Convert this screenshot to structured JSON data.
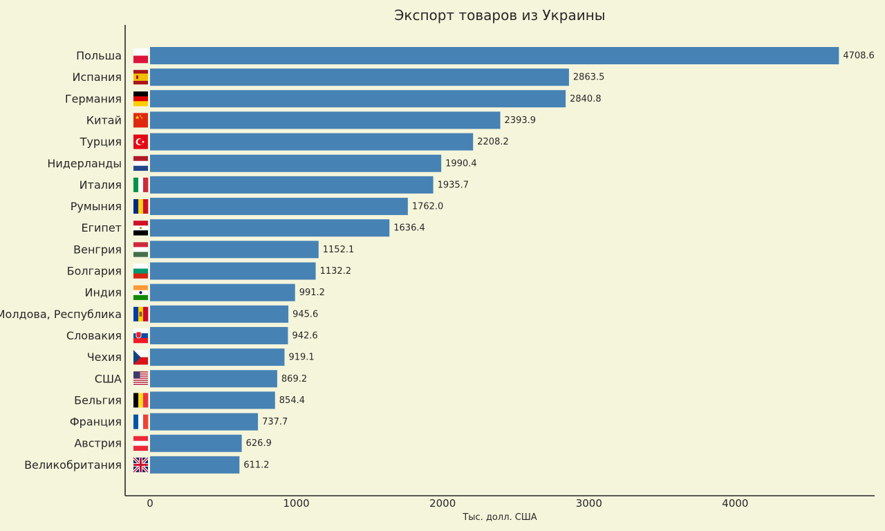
{
  "chart_data": {
    "type": "bar",
    "orientation": "horizontal",
    "title": "Экспорт товаров из Украины",
    "xlabel": "Тыс. долл. США",
    "ylabel": "",
    "categories": [
      "Польша",
      "Испания",
      "Германия",
      "Китай",
      "Турция",
      "Нидерланды",
      "Италия",
      "Румыния",
      "Египет",
      "Венгрия",
      "Болгария",
      "Индия",
      "Молдова, Республика",
      "Словакия",
      "Чехия",
      "США",
      "Бельгия",
      "Франция",
      "Австрия",
      "Великобритания"
    ],
    "values": [
      4708.6,
      2863.5,
      2840.8,
      2393.9,
      2208.2,
      1990.4,
      1935.7,
      1762.0,
      1636.4,
      1152.1,
      1132.2,
      991.2,
      945.6,
      942.6,
      919.1,
      869.2,
      854.4,
      737.7,
      626.9,
      611.2
    ],
    "value_labels": [
      "4708.6",
      "2863.5",
      "2840.8",
      "2393.9",
      "2208.2",
      "1990.4",
      "1935.7",
      "1762.0",
      "1636.4",
      "1152.1",
      "1132.2",
      "991.2",
      "945.6",
      "942.6",
      "919.1",
      "869.2",
      "854.4",
      "737.7",
      "626.9",
      "611.2"
    ],
    "flag_icons": [
      "flag-poland-icon",
      "flag-spain-icon",
      "flag-germany-icon",
      "flag-china-icon",
      "flag-turkey-icon",
      "flag-netherlands-icon",
      "flag-italy-icon",
      "flag-romania-icon",
      "flag-egypt-icon",
      "flag-hungary-icon",
      "flag-bulgaria-icon",
      "flag-india-icon",
      "flag-moldova-icon",
      "flag-slovakia-icon",
      "flag-czechia-icon",
      "flag-usa-icon",
      "flag-belgium-icon",
      "flag-france-icon",
      "flag-austria-icon",
      "flag-uk-icon"
    ],
    "xticks": [
      0,
      1000,
      2000,
      3000,
      4000
    ],
    "xtick_labels": [
      "0",
      "1000",
      "2000",
      "3000",
      "4000"
    ],
    "xlim": [
      -170,
      4960
    ],
    "grid": false,
    "legend": "none",
    "colors": {
      "bar": "#4682b4",
      "background": "#f5f5dc",
      "axis": "#262626"
    }
  }
}
